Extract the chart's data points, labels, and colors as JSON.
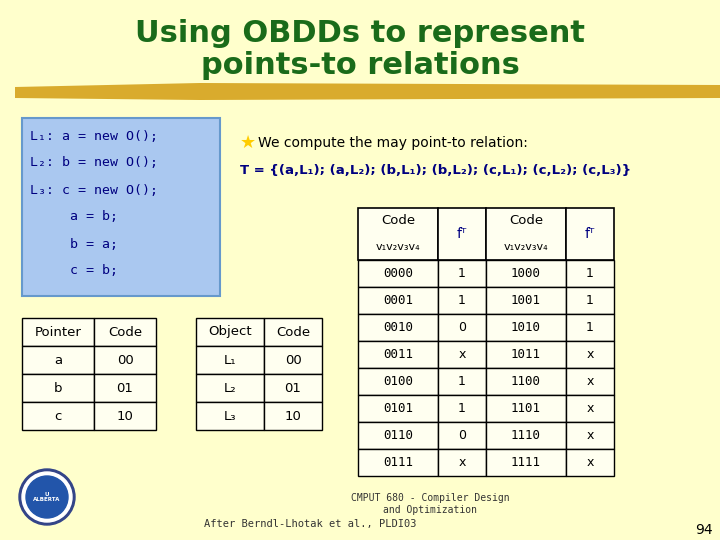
{
  "title_line1": "Using OBDDs to represent",
  "title_line2": "points-to relations",
  "title_color": "#1a6b1a",
  "bg_color": "#ffffcc",
  "highlight_color": "#d4a017",
  "code_box_color": "#aac8f0",
  "code_box_border_color": "#6699cc",
  "code_text_color": "#000080",
  "code_lines": [
    "L₁: a = new O();",
    "L₂: b = new O();",
    "L₃: c = new O();",
    "     a = b;",
    "     b = a;",
    "     c = b;"
  ],
  "bullet_color": "#ffcc00",
  "relation_text1": "We compute the may point-to relation:",
  "relation_text2": "T = {(a,L₁); (a,L₂); (b,L₁); (b,L₂); (c,L₁); (c,L₂); (c,L₃)}",
  "relation_color": "#000080",
  "pointer_table": {
    "headers": [
      "Pointer",
      "Code"
    ],
    "rows": [
      [
        "a",
        "00"
      ],
      [
        "b",
        "01"
      ],
      [
        "c",
        "10"
      ]
    ]
  },
  "object_table": {
    "headers": [
      "Object",
      "Code"
    ],
    "rows": [
      [
        "L₁",
        "00"
      ],
      [
        "L₂",
        "01"
      ],
      [
        "L₃",
        "10"
      ]
    ]
  },
  "truth_table": {
    "col1_codes": [
      "0000",
      "0001",
      "0010",
      "0011",
      "0100",
      "0101",
      "0110",
      "0111"
    ],
    "col1_fT": [
      "1",
      "1",
      "0",
      "x",
      "1",
      "1",
      "0",
      "x"
    ],
    "col2_codes": [
      "1000",
      "1001",
      "1010",
      "1011",
      "1100",
      "1101",
      "1110",
      "1111"
    ],
    "col2_fT": [
      "1",
      "1",
      "1",
      "x",
      "x",
      "x",
      "x",
      "x"
    ]
  },
  "footer_text1": "CMPUT 680 - Compiler Design",
  "footer_text2": "and Optimization",
  "footer_text3": "After Berndl-Lhotak et al., PLDI03",
  "page_number": "94",
  "table_cell_bg": "#fffff0",
  "table_header_bg": "#fffff0",
  "table_border": "#000000"
}
